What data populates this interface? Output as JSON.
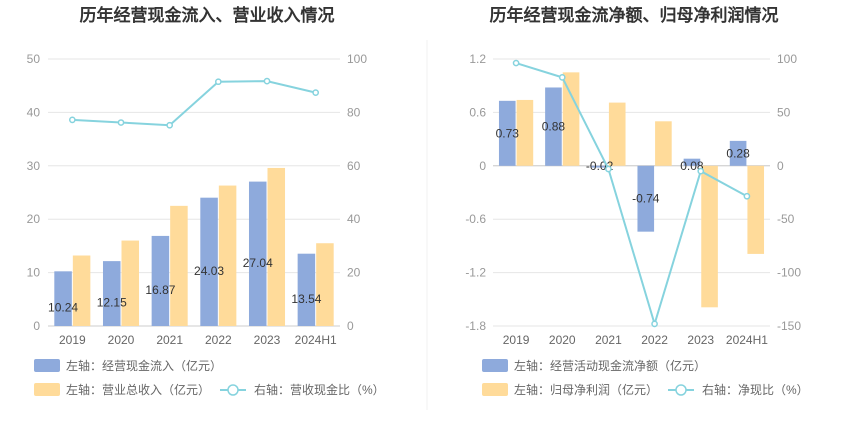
{
  "chart_data": [
    {
      "type": "bar",
      "title": "历年经营现金流入、营业收入情况",
      "categories": [
        "2019",
        "2020",
        "2021",
        "2022",
        "2023",
        "2024H1"
      ],
      "left_axis": {
        "ylim": [
          0,
          50
        ],
        "ticks": [
          0,
          10,
          20,
          30,
          40,
          50
        ]
      },
      "right_axis": {
        "ylim": [
          0,
          100
        ],
        "ticks": [
          0,
          20,
          40,
          60,
          80,
          100
        ]
      },
      "series": [
        {
          "name": "左轴：经营现金流入（亿元）",
          "type": "bar",
          "axis": "left",
          "color": "#8eaadc",
          "values": [
            10.24,
            12.15,
            16.87,
            24.03,
            27.04,
            13.54
          ],
          "labels": [
            "10.24",
            "12.15",
            "16.87",
            "24.03",
            "27.04",
            "13.54"
          ]
        },
        {
          "name": "左轴：营业总收入（亿元）",
          "type": "bar",
          "axis": "left",
          "color": "#ffdb9a",
          "values": [
            13.2,
            16.0,
            22.5,
            26.3,
            29.6,
            15.5
          ]
        },
        {
          "name": "右轴：营收现金比（%）",
          "type": "line",
          "axis": "right",
          "color": "#86d3de",
          "values": [
            77.2,
            76.2,
            75.2,
            91.5,
            91.7,
            87.4
          ]
        }
      ]
    },
    {
      "type": "bar",
      "title": "历年经营现金流净额、归母净利润情况",
      "categories": [
        "2019",
        "2020",
        "2021",
        "2022",
        "2023",
        "2024H1"
      ],
      "left_axis": {
        "ylim": [
          -1.8,
          1.2
        ],
        "ticks": [
          1.2,
          0.6,
          0,
          -0.6,
          -1.2,
          -1.8
        ]
      },
      "right_axis": {
        "ylim": [
          -150,
          100
        ],
        "ticks": [
          100,
          50,
          0,
          -50,
          -100,
          -150
        ]
      },
      "series": [
        {
          "name": "左轴：经营活动现金流净额（亿元）",
          "type": "bar",
          "axis": "left",
          "color": "#8eaadc",
          "values": [
            0.73,
            0.88,
            -0.02,
            -0.74,
            0.08,
            0.28
          ],
          "labels": [
            "0.73",
            "0.88",
            "-0.02",
            "-0.74",
            "0.08",
            "0.28"
          ]
        },
        {
          "name": "左轴：归母净利润（亿元）",
          "type": "bar",
          "axis": "left",
          "color": "#ffdb9a",
          "values": [
            0.74,
            1.05,
            0.71,
            0.5,
            -1.59,
            -0.99
          ]
        },
        {
          "name": "右轴：净现比（%）",
          "type": "line",
          "axis": "right",
          "color": "#86d3de",
          "values": [
            96.2,
            82.8,
            -3.0,
            -148.0,
            -5.0,
            -28.5
          ]
        }
      ]
    }
  ]
}
